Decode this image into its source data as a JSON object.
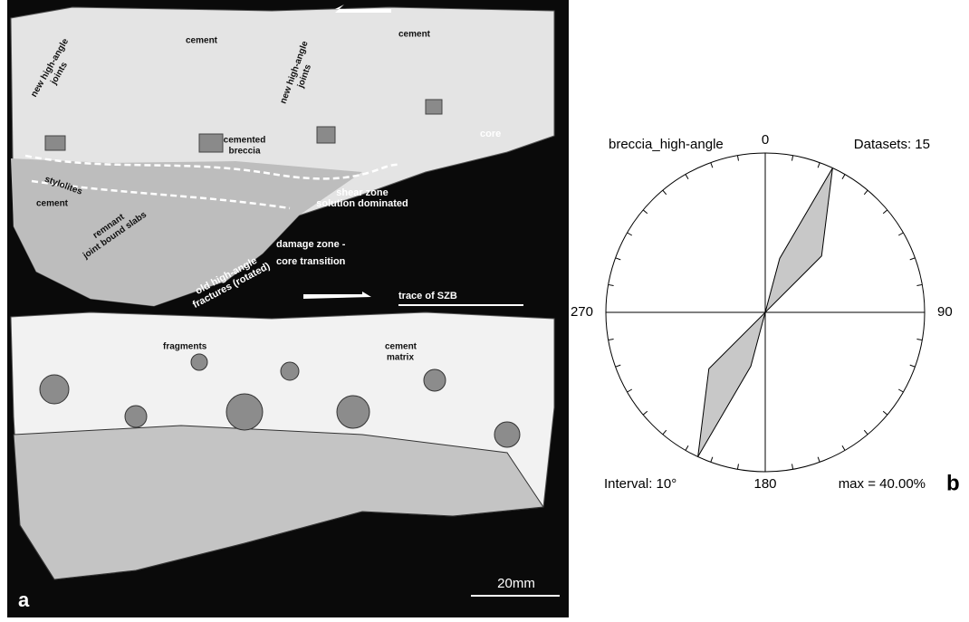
{
  "panel_a": {
    "letter": "a",
    "scale_bar": "20mm",
    "upper_labels": [
      {
        "lines": [
          "cement"
        ]
      },
      {
        "lines": [
          "cement"
        ]
      },
      {
        "lines": [
          "new high-angle",
          "joints"
        ]
      },
      {
        "lines": [
          "new high-angle",
          "joints"
        ]
      },
      {
        "lines": [
          "cemented",
          "breccia"
        ]
      },
      {
        "lines": [
          "core"
        ]
      },
      {
        "lines": [
          "shear zone",
          "solution dominated"
        ]
      },
      {
        "lines": [
          "stylolites"
        ]
      },
      {
        "lines": [
          "cement"
        ]
      },
      {
        "lines": [
          "remnant",
          "joint bound slabs"
        ]
      },
      {
        "lines": [
          "damage zone -",
          "core transition"
        ]
      },
      {
        "lines": [
          "old high-angle",
          "fractures (rotated)"
        ]
      },
      {
        "lines": [
          "trace of SZB"
        ]
      }
    ],
    "lower_labels": [
      {
        "lines": [
          "fragments"
        ]
      },
      {
        "lines": [
          "cement",
          "matrix"
        ]
      }
    ]
  },
  "chart_data": {
    "type": "rose",
    "title": "breccia_high-angle",
    "datasets_label": "Datasets: 15",
    "interval_label": "Interval: 10°",
    "max_label": "max = 40.00%",
    "panel_letter": "b",
    "bidirectional": true,
    "directions": [
      15,
      25,
      45
    ],
    "values": [
      14,
      40,
      20
    ],
    "color": "#c8c8c8",
    "rlim": [
      0,
      40
    ],
    "angle_ticks": [
      0,
      90,
      180,
      270
    ]
  }
}
